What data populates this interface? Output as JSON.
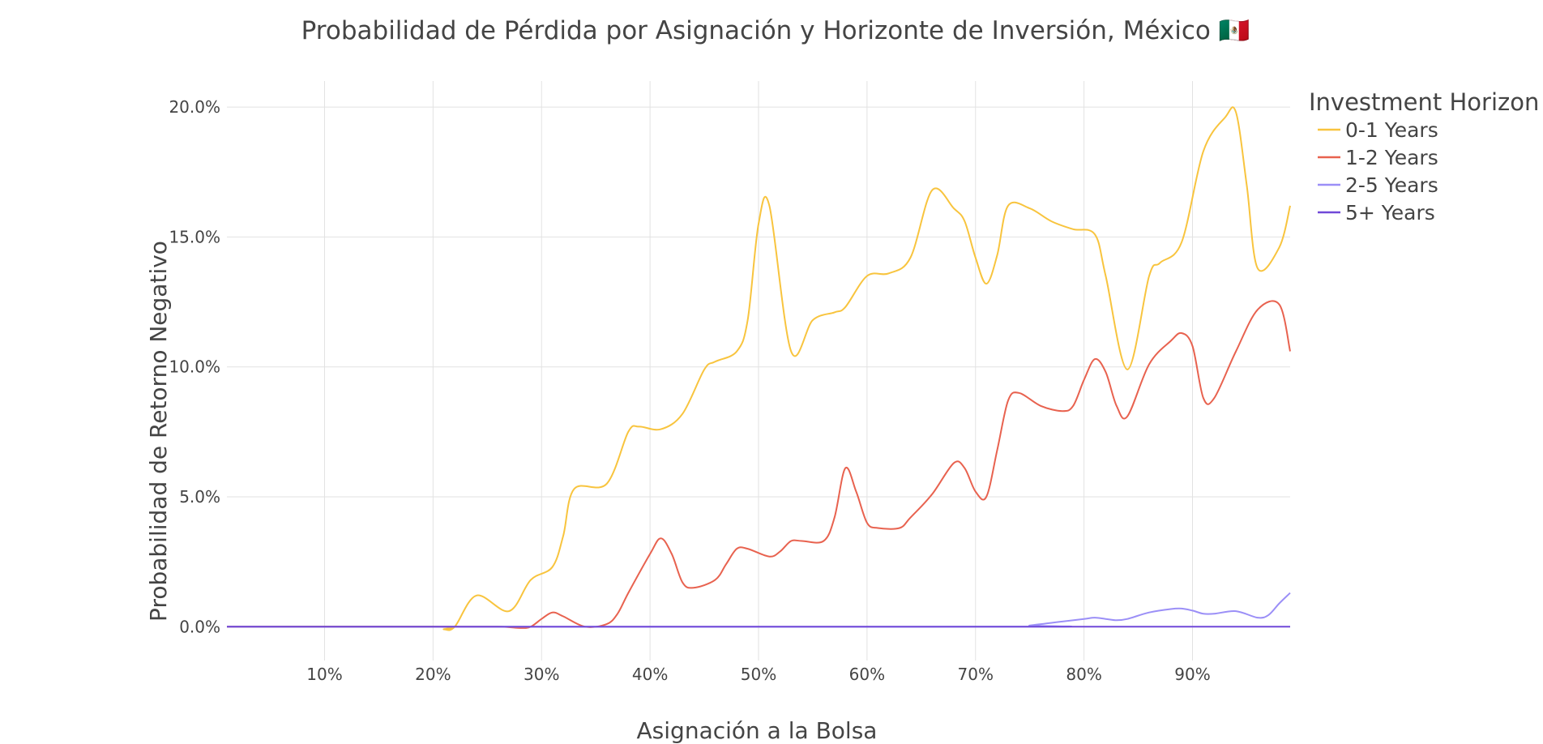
{
  "chart_data": {
    "type": "line",
    "title": "Probabilidad de Pérdida por Asignación y Horizonte de Inversión, México 🇲🇽",
    "xlabel": "Asignación a la Bolsa",
    "ylabel": "Probabilidad de Retorno Negativo",
    "xlim": [
      1,
      99
    ],
    "ylim": [
      -1.3,
      21
    ],
    "x_ticks": [
      10,
      20,
      30,
      40,
      50,
      60,
      70,
      80,
      90
    ],
    "x_tick_labels": [
      "10%",
      "20%",
      "30%",
      "40%",
      "50%",
      "60%",
      "70%",
      "80%",
      "90%"
    ],
    "y_ticks": [
      0,
      5,
      10,
      15,
      20
    ],
    "y_tick_labels": [
      "0.0%",
      "5.0%",
      "10.0%",
      "15.0%",
      "20.0%"
    ],
    "grid": true,
    "legend_title": "Investment Horizon",
    "legend_position": "right",
    "series": [
      {
        "name": "0-1 Years",
        "color": "#f8c43e",
        "x": [
          1,
          20,
          21,
          22,
          24,
          27,
          29,
          31,
          32,
          33,
          36,
          38,
          39,
          41,
          43,
          45,
          46,
          48,
          49,
          50,
          51,
          53,
          55,
          57,
          58,
          60,
          62,
          64,
          66,
          68,
          69,
          70,
          71,
          72,
          73,
          75,
          77,
          79,
          81,
          82,
          84,
          86,
          87,
          89,
          91,
          93,
          94,
          95,
          96,
          98,
          99
        ],
        "y": [
          0,
          0,
          -0.1,
          0,
          1.2,
          0.6,
          1.8,
          2.3,
          3.5,
          5.3,
          5.5,
          7.5,
          7.7,
          7.6,
          8.2,
          9.9,
          10.2,
          10.6,
          11.8,
          15.5,
          16.2,
          10.6,
          11.8,
          12.1,
          12.3,
          13.5,
          13.6,
          14.2,
          16.8,
          16.1,
          15.6,
          14.2,
          13.2,
          14.3,
          16.2,
          16.1,
          15.6,
          15.3,
          15.1,
          13.5,
          9.9,
          13.5,
          14.0,
          14.8,
          18.3,
          19.6,
          19.8,
          17.0,
          13.8,
          14.6,
          16.2
        ]
      },
      {
        "name": "1-2 Years",
        "color": "#e8624f",
        "x": [
          1,
          20,
          26,
          28,
          29,
          30,
          31,
          32,
          34,
          36,
          37,
          38,
          40,
          41,
          42,
          43,
          44,
          46,
          47,
          48,
          49,
          51,
          52,
          53,
          54,
          56,
          57,
          58,
          59,
          60,
          61,
          63,
          64,
          66,
          68,
          69,
          70,
          71,
          72,
          73,
          74,
          76,
          78,
          79,
          80,
          81,
          82,
          83,
          84,
          86,
          88,
          89,
          90,
          91,
          92,
          94,
          96,
          98,
          99
        ],
        "y": [
          0,
          0,
          0,
          -0.05,
          0,
          0.3,
          0.55,
          0.4,
          0,
          0.1,
          0.5,
          1.3,
          2.8,
          3.4,
          2.8,
          1.7,
          1.5,
          1.8,
          2.4,
          3.0,
          3.0,
          2.7,
          2.9,
          3.3,
          3.3,
          3.3,
          4.2,
          6.1,
          5.2,
          4.0,
          3.8,
          3.8,
          4.2,
          5.1,
          6.3,
          6.1,
          5.2,
          5.0,
          6.8,
          8.7,
          9.0,
          8.5,
          8.3,
          8.5,
          9.5,
          10.3,
          9.8,
          8.5,
          8.1,
          10.1,
          11.0,
          11.3,
          10.8,
          8.8,
          8.8,
          10.6,
          12.2,
          12.4,
          10.6
        ]
      },
      {
        "name": "2-5 Years",
        "color": "#9b8ff7",
        "x": [
          1,
          73,
          75,
          78,
          80,
          81,
          82,
          83,
          84,
          86,
          88,
          89,
          90,
          91,
          92,
          94,
          96,
          97,
          98,
          99
        ],
        "y": [
          0,
          0,
          0.05,
          0.2,
          0.3,
          0.35,
          0.3,
          0.25,
          0.3,
          0.55,
          0.68,
          0.7,
          0.62,
          0.5,
          0.5,
          0.6,
          0.35,
          0.45,
          0.9,
          1.3
        ]
      },
      {
        "name": "5+ Years",
        "color": "#7049d8",
        "x": [
          1,
          99
        ],
        "y": [
          0,
          0
        ]
      }
    ]
  }
}
